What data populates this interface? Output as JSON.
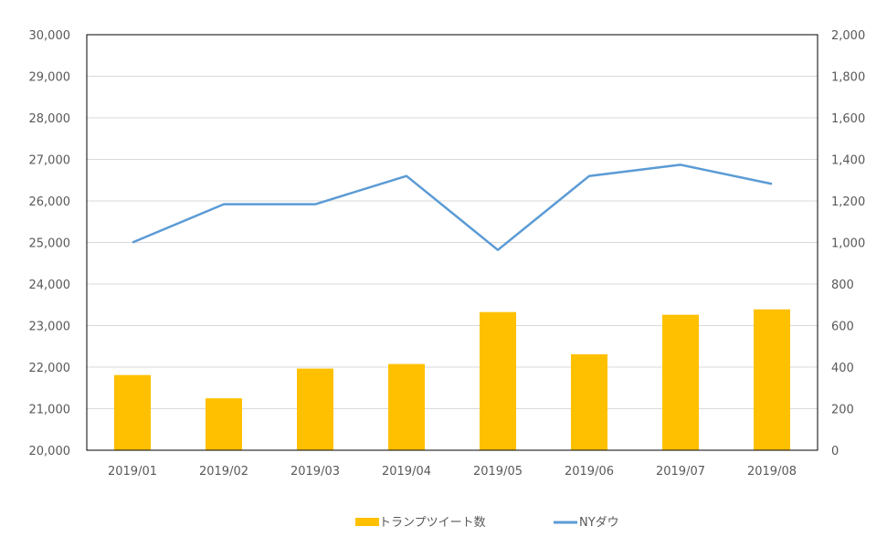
{
  "chart_data": {
    "type": "bar+line",
    "categories": [
      "2019/01",
      "2019/02",
      "2019/03",
      "2019/04",
      "2019/05",
      "2019/06",
      "2019/07",
      "2019/08"
    ],
    "series": [
      {
        "name": "トランプツイート数",
        "kind": "bar",
        "axis": "right",
        "color": "#FFC000",
        "values": [
          362,
          250,
          393,
          415,
          665,
          462,
          652,
          678
        ]
      },
      {
        "name": "NYダウ",
        "kind": "line",
        "axis": "left",
        "color": "#5B9BD5",
        "values": [
          25000,
          25920,
          25920,
          26600,
          24820,
          26600,
          26870,
          26410
        ]
      }
    ],
    "y_left": {
      "range": [
        20000,
        30000
      ],
      "ticks": [
        "20,000",
        "21,000",
        "22,000",
        "23,000",
        "24,000",
        "25,000",
        "26,000",
        "27,000",
        "28,000",
        "29,000",
        "30,000"
      ]
    },
    "y_right": {
      "range": [
        0,
        2000
      ],
      "ticks": [
        "0",
        "200",
        "400",
        "600",
        "800",
        "1,000",
        "1,200",
        "1,400",
        "1,600",
        "1,800",
        "2,000"
      ]
    },
    "grid": true,
    "legend_position": "bottom",
    "title": "",
    "xlabel": "",
    "ylabel": ""
  }
}
